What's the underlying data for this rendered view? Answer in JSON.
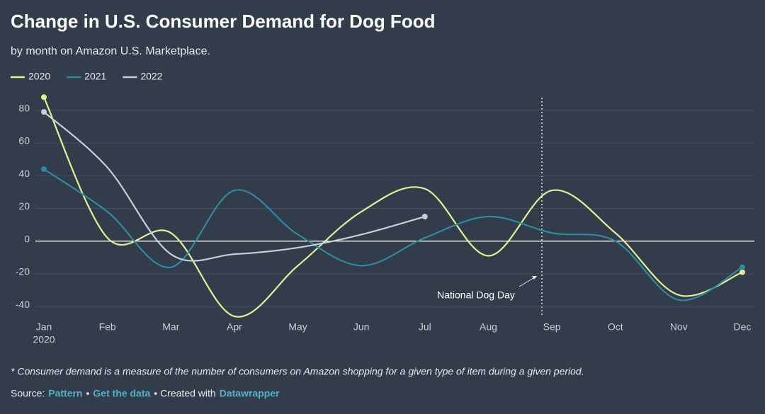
{
  "chart_data": {
    "type": "line",
    "title": "Change in U.S. Consumer Demand for Dog Food",
    "subtitle": "by month on Amazon U.S. Marketplace.",
    "categories": [
      "Jan",
      "Feb",
      "Mar",
      "Apr",
      "May",
      "Jun",
      "Jul",
      "Aug",
      "Sep",
      "Oct",
      "Nov",
      "Dec"
    ],
    "first_category_year": "2020",
    "series": [
      {
        "name": "2020",
        "color": "#e4ef95",
        "values": [
          88,
          2,
          5,
          -46,
          -15,
          18,
          32,
          -9,
          31,
          5,
          -33,
          -19
        ]
      },
      {
        "name": "2021",
        "color": "#2f8a9e",
        "values": [
          44,
          18,
          -16,
          31,
          4,
          -15,
          2,
          15,
          5,
          0,
          -36,
          -16
        ]
      },
      {
        "name": "2022",
        "color": "#c5cfd9",
        "values": [
          79,
          45,
          -8,
          -8,
          -4,
          4,
          15,
          null,
          null,
          null,
          null,
          null
        ]
      }
    ],
    "ylim": [
      -46,
      89
    ],
    "yticks": [
      -40,
      -20,
      0,
      20,
      40,
      60,
      80
    ],
    "grid": true,
    "annotation": "National Dog Day",
    "note": "* Consumer demand is a measure of the number of consumers on Amazon shopping for a given type of item during a given period.",
    "source": {
      "label": "Source:",
      "links": [
        "Pattern",
        "Get the data"
      ],
      "created": "• Created with",
      "tool": "Datawrapper",
      "separator": "•"
    }
  }
}
